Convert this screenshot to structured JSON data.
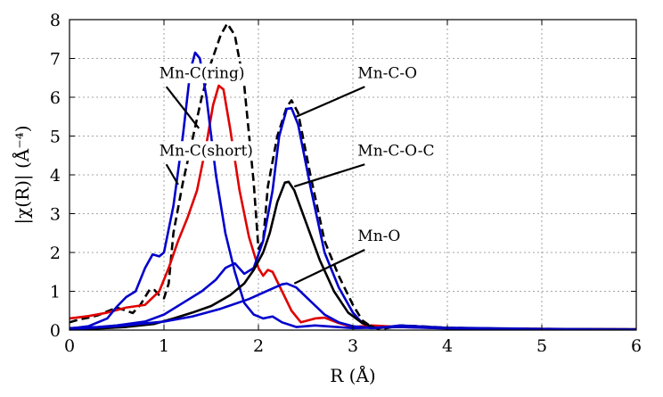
{
  "chart_data": {
    "type": "line",
    "xlabel": "R (Å)",
    "ylabel": "|χ(R)| (Å⁻⁴)",
    "xlim": [
      0,
      6
    ],
    "ylim": [
      0,
      8
    ],
    "xticks": [
      0,
      1,
      2,
      3,
      4,
      5,
      6
    ],
    "yticks": [
      0,
      1,
      2,
      3,
      4,
      5,
      6,
      7,
      8
    ],
    "grid": true,
    "series": [
      {
        "color": "#000000",
        "style": "dashed",
        "points": [
          [
            0,
            0.2
          ],
          [
            0.1,
            0.27
          ],
          [
            0.2,
            0.32
          ],
          [
            0.3,
            0.38
          ],
          [
            0.4,
            0.48
          ],
          [
            0.5,
            0.58
          ],
          [
            0.6,
            0.5
          ],
          [
            0.67,
            0.44
          ],
          [
            0.75,
            0.65
          ],
          [
            0.85,
            1.05
          ],
          [
            0.9,
            1.03
          ],
          [
            0.95,
            0.9
          ],
          [
            1.0,
            0.82
          ],
          [
            1.05,
            1.2
          ],
          [
            1.1,
            2.5
          ],
          [
            1.2,
            3.8
          ],
          [
            1.3,
            4.9
          ],
          [
            1.4,
            6.0
          ],
          [
            1.5,
            6.9
          ],
          [
            1.6,
            7.6
          ],
          [
            1.67,
            7.9
          ],
          [
            1.75,
            7.6
          ],
          [
            1.85,
            6.3
          ],
          [
            1.95,
            3.8
          ],
          [
            2.0,
            2.1
          ],
          [
            2.05,
            2.3
          ],
          [
            2.1,
            3.7
          ],
          [
            2.2,
            5.0
          ],
          [
            2.3,
            5.75
          ],
          [
            2.35,
            5.92
          ],
          [
            2.42,
            5.6
          ],
          [
            2.55,
            4.0
          ],
          [
            2.7,
            2.3
          ],
          [
            2.85,
            1.4
          ],
          [
            3.0,
            0.65
          ],
          [
            3.1,
            0.25
          ],
          [
            3.2,
            0.08
          ],
          [
            3.3,
            0.02
          ],
          [
            3.5,
            0.12
          ],
          [
            3.7,
            0.1
          ],
          [
            4.0,
            0.06
          ],
          [
            4.5,
            0.04
          ],
          [
            5.0,
            0.03
          ],
          [
            5.5,
            0.02
          ],
          [
            6.0,
            0.02
          ]
        ]
      },
      {
        "color": "#e00000",
        "style": "solid",
        "points": [
          [
            0,
            0.3
          ],
          [
            0.2,
            0.36
          ],
          [
            0.4,
            0.45
          ],
          [
            0.6,
            0.58
          ],
          [
            0.8,
            0.65
          ],
          [
            0.95,
            1.0
          ],
          [
            1.05,
            1.6
          ],
          [
            1.15,
            2.3
          ],
          [
            1.25,
            2.9
          ],
          [
            1.35,
            3.6
          ],
          [
            1.45,
            4.8
          ],
          [
            1.52,
            5.8
          ],
          [
            1.58,
            6.3
          ],
          [
            1.63,
            6.2
          ],
          [
            1.7,
            5.2
          ],
          [
            1.8,
            3.6
          ],
          [
            1.9,
            2.4
          ],
          [
            2.0,
            1.6
          ],
          [
            2.05,
            1.4
          ],
          [
            2.1,
            1.55
          ],
          [
            2.15,
            1.5
          ],
          [
            2.25,
            1.0
          ],
          [
            2.35,
            0.5
          ],
          [
            2.45,
            0.2
          ],
          [
            2.6,
            0.3
          ],
          [
            2.7,
            0.32
          ],
          [
            2.85,
            0.18
          ],
          [
            3.0,
            0.08
          ],
          [
            3.2,
            0.12
          ],
          [
            3.5,
            0.08
          ],
          [
            4.0,
            0.05
          ],
          [
            5.0,
            0.03
          ],
          [
            6.0,
            0.02
          ]
        ]
      },
      {
        "color": "#0000cc",
        "style": "solid",
        "points": [
          [
            0,
            0.04
          ],
          [
            0.2,
            0.1
          ],
          [
            0.4,
            0.3
          ],
          [
            0.5,
            0.6
          ],
          [
            0.6,
            0.85
          ],
          [
            0.7,
            1.0
          ],
          [
            0.8,
            1.6
          ],
          [
            0.88,
            1.95
          ],
          [
            0.95,
            1.9
          ],
          [
            1.0,
            2.0
          ],
          [
            1.1,
            3.2
          ],
          [
            1.2,
            5.0
          ],
          [
            1.28,
            6.7
          ],
          [
            1.33,
            7.15
          ],
          [
            1.38,
            7.0
          ],
          [
            1.45,
            6.0
          ],
          [
            1.55,
            4.0
          ],
          [
            1.65,
            2.5
          ],
          [
            1.75,
            1.5
          ],
          [
            1.85,
            0.7
          ],
          [
            1.95,
            0.4
          ],
          [
            2.05,
            0.3
          ],
          [
            2.15,
            0.35
          ],
          [
            2.25,
            0.2
          ],
          [
            2.4,
            0.08
          ],
          [
            2.6,
            0.12
          ],
          [
            3.0,
            0.05
          ],
          [
            3.5,
            0.08
          ],
          [
            4.0,
            0.04
          ],
          [
            5.0,
            0.02
          ],
          [
            6.0,
            0.01
          ]
        ]
      },
      {
        "color": "#0000cc",
        "style": "solid",
        "points": [
          [
            0,
            0.05
          ],
          [
            0.3,
            0.08
          ],
          [
            0.5,
            0.12
          ],
          [
            0.8,
            0.22
          ],
          [
            1.0,
            0.4
          ],
          [
            1.2,
            0.7
          ],
          [
            1.4,
            1.0
          ],
          [
            1.55,
            1.3
          ],
          [
            1.65,
            1.6
          ],
          [
            1.75,
            1.72
          ],
          [
            1.85,
            1.45
          ],
          [
            1.95,
            1.6
          ],
          [
            2.05,
            2.3
          ],
          [
            2.15,
            3.6
          ],
          [
            2.22,
            5.0
          ],
          [
            2.3,
            5.7
          ],
          [
            2.35,
            5.72
          ],
          [
            2.42,
            5.3
          ],
          [
            2.55,
            3.7
          ],
          [
            2.7,
            2.0
          ],
          [
            2.85,
            1.1
          ],
          [
            3.0,
            0.45
          ],
          [
            3.1,
            0.18
          ],
          [
            3.25,
            0.05
          ],
          [
            3.5,
            0.12
          ],
          [
            4.0,
            0.06
          ],
          [
            5.0,
            0.03
          ],
          [
            6.0,
            0.02
          ]
        ]
      },
      {
        "color": "#000000",
        "style": "solid",
        "points": [
          [
            0,
            0.02
          ],
          [
            0.3,
            0.04
          ],
          [
            0.6,
            0.08
          ],
          [
            0.9,
            0.16
          ],
          [
            1.1,
            0.3
          ],
          [
            1.3,
            0.45
          ],
          [
            1.5,
            0.62
          ],
          [
            1.7,
            0.9
          ],
          [
            1.85,
            1.2
          ],
          [
            1.95,
            1.55
          ],
          [
            2.05,
            2.0
          ],
          [
            2.12,
            2.5
          ],
          [
            2.2,
            3.3
          ],
          [
            2.28,
            3.8
          ],
          [
            2.32,
            3.82
          ],
          [
            2.38,
            3.6
          ],
          [
            2.5,
            2.8
          ],
          [
            2.65,
            1.8
          ],
          [
            2.8,
            1.0
          ],
          [
            2.95,
            0.45
          ],
          [
            3.1,
            0.18
          ],
          [
            3.25,
            0.05
          ],
          [
            3.5,
            0.1
          ],
          [
            4.0,
            0.05
          ],
          [
            5.0,
            0.02
          ],
          [
            6.0,
            0.02
          ]
        ]
      },
      {
        "color": "#0000cc",
        "style": "solid",
        "points": [
          [
            0,
            0.02
          ],
          [
            0.5,
            0.1
          ],
          [
            1.0,
            0.22
          ],
          [
            1.3,
            0.35
          ],
          [
            1.6,
            0.55
          ],
          [
            1.9,
            0.8
          ],
          [
            2.1,
            1.02
          ],
          [
            2.25,
            1.18
          ],
          [
            2.3,
            1.2
          ],
          [
            2.4,
            1.1
          ],
          [
            2.55,
            0.75
          ],
          [
            2.7,
            0.4
          ],
          [
            2.85,
            0.2
          ],
          [
            3.0,
            0.1
          ],
          [
            3.2,
            0.05
          ],
          [
            3.5,
            0.1
          ],
          [
            4.0,
            0.05
          ],
          [
            5.0,
            0.02
          ],
          [
            6.0,
            0.01
          ]
        ]
      }
    ],
    "annotations": [
      {
        "text": "Mn-C(ring)",
        "tip": [
          1.37,
          5.2
        ],
        "label_pos": [
          0.95,
          6.5
        ],
        "anchor": "start"
      },
      {
        "text": "Mn-C(short)",
        "tip": [
          1.15,
          3.75
        ],
        "label_pos": [
          0.95,
          4.5
        ],
        "anchor": "start"
      },
      {
        "text": "Mn-C-O",
        "tip": [
          2.4,
          5.5
        ],
        "label_pos": [
          3.05,
          6.5
        ],
        "anchor": "start"
      },
      {
        "text": "Mn-C-O-C",
        "tip": [
          2.38,
          3.7
        ],
        "label_pos": [
          3.05,
          4.5
        ],
        "anchor": "start"
      },
      {
        "text": "Mn-O",
        "tip": [
          2.38,
          1.2
        ],
        "label_pos": [
          3.05,
          2.3
        ],
        "anchor": "start"
      }
    ]
  }
}
